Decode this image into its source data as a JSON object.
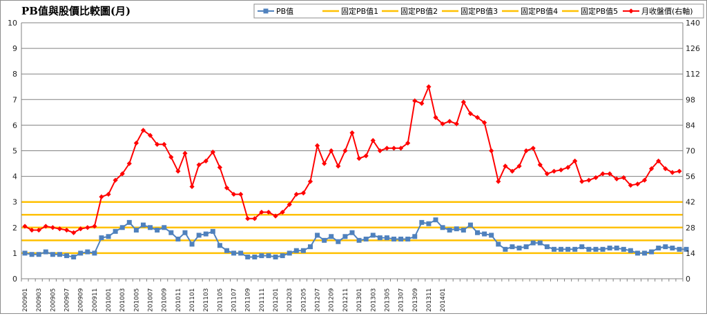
{
  "chart_data": {
    "type": "line",
    "title": "PB值與股價比較圖(月)",
    "legend_position": "top-right",
    "grid": true,
    "y_left": {
      "min": 0,
      "max": 10,
      "ticks": [
        0,
        1,
        2,
        3,
        4,
        5,
        6,
        7,
        8,
        9,
        10
      ]
    },
    "y_right": {
      "min": 0,
      "max": 140,
      "ticks": [
        0,
        14,
        28,
        42,
        56,
        70,
        84,
        98,
        112,
        126,
        140
      ]
    },
    "x_labels": [
      "200901",
      "200903",
      "200905",
      "200907",
      "200909",
      "200911",
      "201001",
      "201003",
      "201005",
      "201007",
      "201009",
      "201011",
      "201101",
      "201103",
      "201105",
      "201107",
      "201109",
      "201111",
      "201201",
      "201203",
      "201205",
      "201207",
      "201209",
      "201211",
      "201301",
      "201303",
      "201305",
      "201307",
      "201309",
      "201311",
      "201401"
    ],
    "series": [
      {
        "name": "PB值",
        "axis": "left",
        "color": "#4f81bd",
        "marker": "square",
        "values": [
          1.0,
          0.95,
          0.95,
          1.05,
          0.95,
          0.95,
          0.9,
          0.85,
          1.0,
          1.05,
          1.0,
          1.6,
          1.65,
          1.85,
          2.0,
          2.2,
          1.9,
          2.1,
          2.0,
          1.9,
          2.0,
          1.8,
          1.55,
          1.8,
          1.35,
          1.7,
          1.75,
          1.85,
          1.3,
          1.1,
          1.0,
          1.0,
          0.85,
          0.85,
          0.9,
          0.9,
          0.85,
          0.9,
          1.0,
          1.1,
          1.1,
          1.25,
          1.7,
          1.5,
          1.65,
          1.45,
          1.65,
          1.8,
          1.5,
          1.55,
          1.7,
          1.6,
          1.6,
          1.55,
          1.55,
          1.55,
          1.65,
          2.2,
          2.15,
          2.3,
          2.0,
          1.9,
          1.95,
          1.9,
          2.1,
          1.8,
          1.75,
          1.7,
          1.35,
          1.15,
          1.25,
          1.2,
          1.25,
          1.4,
          1.4,
          1.25,
          1.15,
          1.15,
          1.15,
          1.15,
          1.25,
          1.15,
          1.15,
          1.15,
          1.2,
          1.2,
          1.15,
          1.1,
          1.0,
          1.0,
          1.05,
          1.2,
          1.25,
          1.2,
          1.15,
          1.15
        ]
      },
      {
        "name": "固定PB值1",
        "axis": "left",
        "color": "#ffc000",
        "constant": 1.0
      },
      {
        "name": "固定PB值2",
        "axis": "left",
        "color": "#ffc000",
        "constant": 1.5
      },
      {
        "name": "固定PB值3",
        "axis": "left",
        "color": "#ffc000",
        "constant": 2.0
      },
      {
        "name": "固定PB值4",
        "axis": "left",
        "color": "#ffc000",
        "constant": 2.5
      },
      {
        "name": "固定PB值5",
        "axis": "left",
        "color": "#ffc000",
        "constant": 3.0
      },
      {
        "name": "月收盤價(右軸)",
        "axis": "right",
        "color": "#ff0000",
        "marker": "diamond",
        "values": [
          28.7,
          26.6,
          26.6,
          28.7,
          28.0,
          27.3,
          26.6,
          25.2,
          27.3,
          28.0,
          28.7,
          44.8,
          46.2,
          53.9,
          57.4,
          63.0,
          74.2,
          81.2,
          78.4,
          73.5,
          73.5,
          66.5,
          58.8,
          68.6,
          50.4,
          62.3,
          64.4,
          69.3,
          60.9,
          49.7,
          46.2,
          46.2,
          32.9,
          32.9,
          36.4,
          36.4,
          34.3,
          36.4,
          40.6,
          46.2,
          46.9,
          53.2,
          72.8,
          63.0,
          70.0,
          61.6,
          70.0,
          79.8,
          65.8,
          67.2,
          75.6,
          70.0,
          71.4,
          71.4,
          71.4,
          74.2,
          97.3,
          95.9,
          105.0,
          88.2,
          84.7,
          86.1,
          84.7,
          96.6,
          90.3,
          88.2,
          85.4,
          70.0,
          53.2,
          61.6,
          58.8,
          61.6,
          70.0,
          71.4,
          62.3,
          57.4,
          58.8,
          59.5,
          60.9,
          64.4,
          53.2,
          53.9,
          55.3,
          57.4,
          57.4,
          54.6,
          55.3,
          51.1,
          51.8,
          53.9,
          60.2,
          64.4,
          60.2,
          58.1,
          58.8
        ]
      }
    ]
  }
}
